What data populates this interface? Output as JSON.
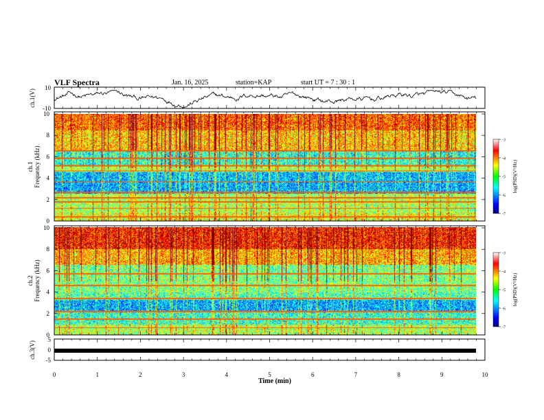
{
  "header": {
    "title": "VLF Spectra",
    "date": "Jan. 16, 2025",
    "station": "station=KAP",
    "start": "start  UT =   7 : 30 : 1"
  },
  "chart_data": [
    {
      "type": "line",
      "name": "ch1-waveform",
      "ylabel": "ch.1(V)",
      "ylim": [
        -10,
        10
      ],
      "yticks": [
        "10",
        "-10"
      ],
      "description_of_values": "noisy amplitude trace fluctuating roughly between -8 and 6 V",
      "x_range_min": [
        0,
        9.85
      ]
    },
    {
      "type": "heatmap",
      "name": "ch1-spectrogram",
      "ylabel": "ch.1\nFrequency (kHz)",
      "ylim": [
        0,
        10
      ],
      "yticks": [
        "0",
        "2",
        "4",
        "6",
        "8",
        "10"
      ],
      "colorbar": {
        "label": "log(PSD)(V²/Hz)",
        "range": [
          -7,
          -3
        ],
        "ticks": [
          "-3",
          "-4",
          "-5",
          "-6",
          "-7"
        ]
      }
    },
    {
      "type": "heatmap",
      "name": "ch2-spectrogram",
      "ylabel": "ch.2\nFrequency (kHz)",
      "ylim": [
        0,
        10
      ],
      "yticks": [
        "0",
        "2",
        "4",
        "6",
        "8",
        "10"
      ],
      "colorbar": {
        "label": "log(PSD)(V²/Hz)",
        "range": [
          -7,
          -3
        ],
        "ticks": [
          "-3",
          "-4",
          "-5",
          "-6",
          "-7"
        ]
      }
    },
    {
      "type": "line",
      "name": "ch3-waveform",
      "ylabel": "ch.3(V)",
      "ylim": [
        -5,
        5
      ],
      "yticks": [
        "5",
        "0",
        "-5"
      ],
      "constant_value": -0.2
    }
  ],
  "xaxis": {
    "label": "Time (min)",
    "range": [
      0,
      10
    ],
    "ticks": [
      "0",
      "1",
      "2",
      "3",
      "4",
      "5",
      "6",
      "7",
      "8",
      "9",
      "10"
    ]
  },
  "colors": {
    "low": "#0000cc",
    "mid": "#00dd00",
    "high": "#ee0000"
  }
}
